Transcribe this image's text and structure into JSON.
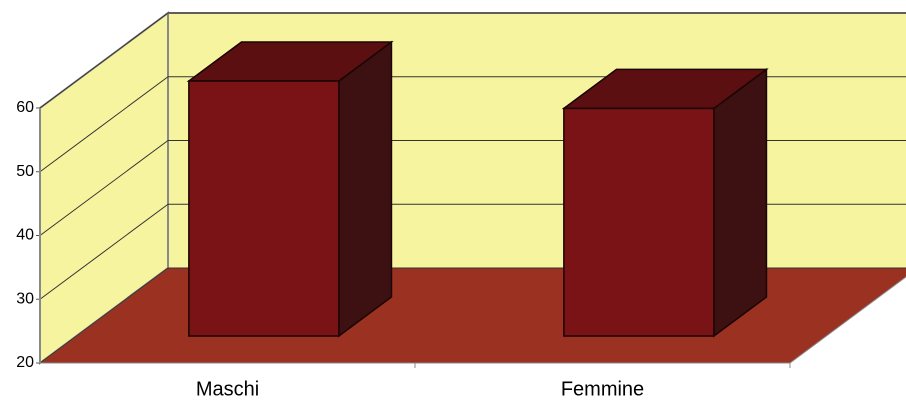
{
  "chart_data": {
    "type": "bar3d",
    "categories": [
      "Maschi",
      "Femmine"
    ],
    "values": [
      60,
      55.7
    ],
    "color": "#7a1315",
    "ylim": [
      20,
      60
    ],
    "yticks": [
      20,
      30,
      40,
      50,
      60
    ],
    "grid": true
  }
}
